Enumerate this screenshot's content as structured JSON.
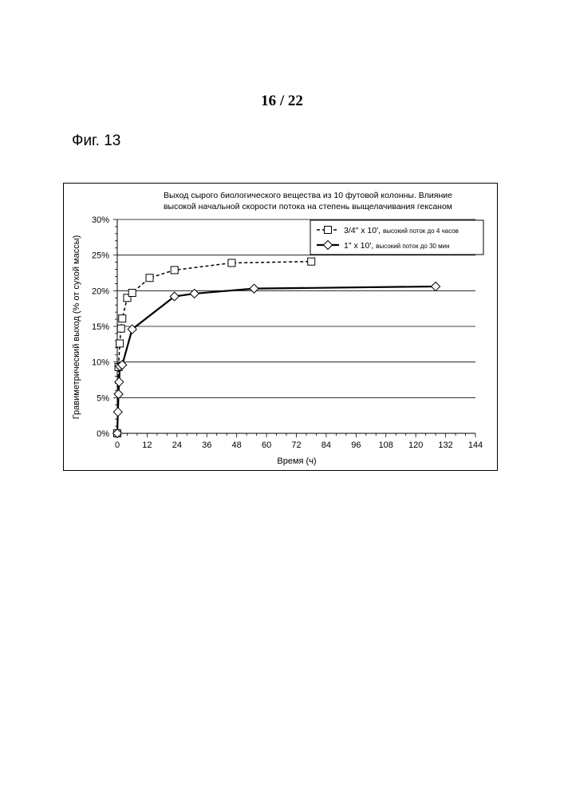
{
  "page": {
    "number": "16 / 22",
    "figure_label": "Фиг. 13"
  },
  "chart_data": {
    "type": "line",
    "title_lines": [
      "Выход сырого биологического вещества из 10 футовой колонны. Влияние",
      "высокой начальной скорости потока на степень выщелачивания гексаном"
    ],
    "xlabel": "Время (ч)",
    "ylabel": "Гравиметрический выход (% от сухой массы)",
    "xlim": [
      0,
      144
    ],
    "ylim": [
      0,
      30
    ],
    "xticks": [
      0,
      12,
      24,
      36,
      48,
      60,
      72,
      84,
      96,
      108,
      120,
      132,
      144
    ],
    "xtick_labels": [
      "0",
      "12",
      "24",
      "36",
      "48",
      "60",
      "72",
      "84",
      "96",
      "108",
      "120",
      "132",
      "144"
    ],
    "yticks": [
      0,
      5,
      10,
      15,
      20,
      25,
      30
    ],
    "ytick_labels": [
      "0%",
      "5%",
      "10%",
      "15%",
      "20%",
      "25%",
      "30%"
    ],
    "grid": "horizontal",
    "legend_position": "top-right",
    "series": [
      {
        "name_main": "3/4\" x 10',",
        "name_note": "высокий поток до 4 часов",
        "marker": "square",
        "line_style": "dashed",
        "x": [
          0,
          0.5,
          1,
          1.5,
          2,
          4,
          6,
          13,
          23,
          46,
          78
        ],
        "y": [
          0,
          9.3,
          12.6,
          14.7,
          16.1,
          19.0,
          19.7,
          21.8,
          22.9,
          23.9,
          24.1
        ]
      },
      {
        "name_main": "1\" x 10',",
        "name_note": "высокий поток до 30 мин",
        "marker": "diamond",
        "line_style": "solid",
        "x": [
          0,
          0.25,
          0.5,
          0.75,
          1,
          2,
          6,
          23,
          31,
          55,
          128
        ],
        "y": [
          0,
          3.0,
          5.5,
          7.2,
          9.4,
          9.6,
          14.6,
          19.2,
          19.6,
          20.3,
          20.6
        ]
      }
    ]
  }
}
